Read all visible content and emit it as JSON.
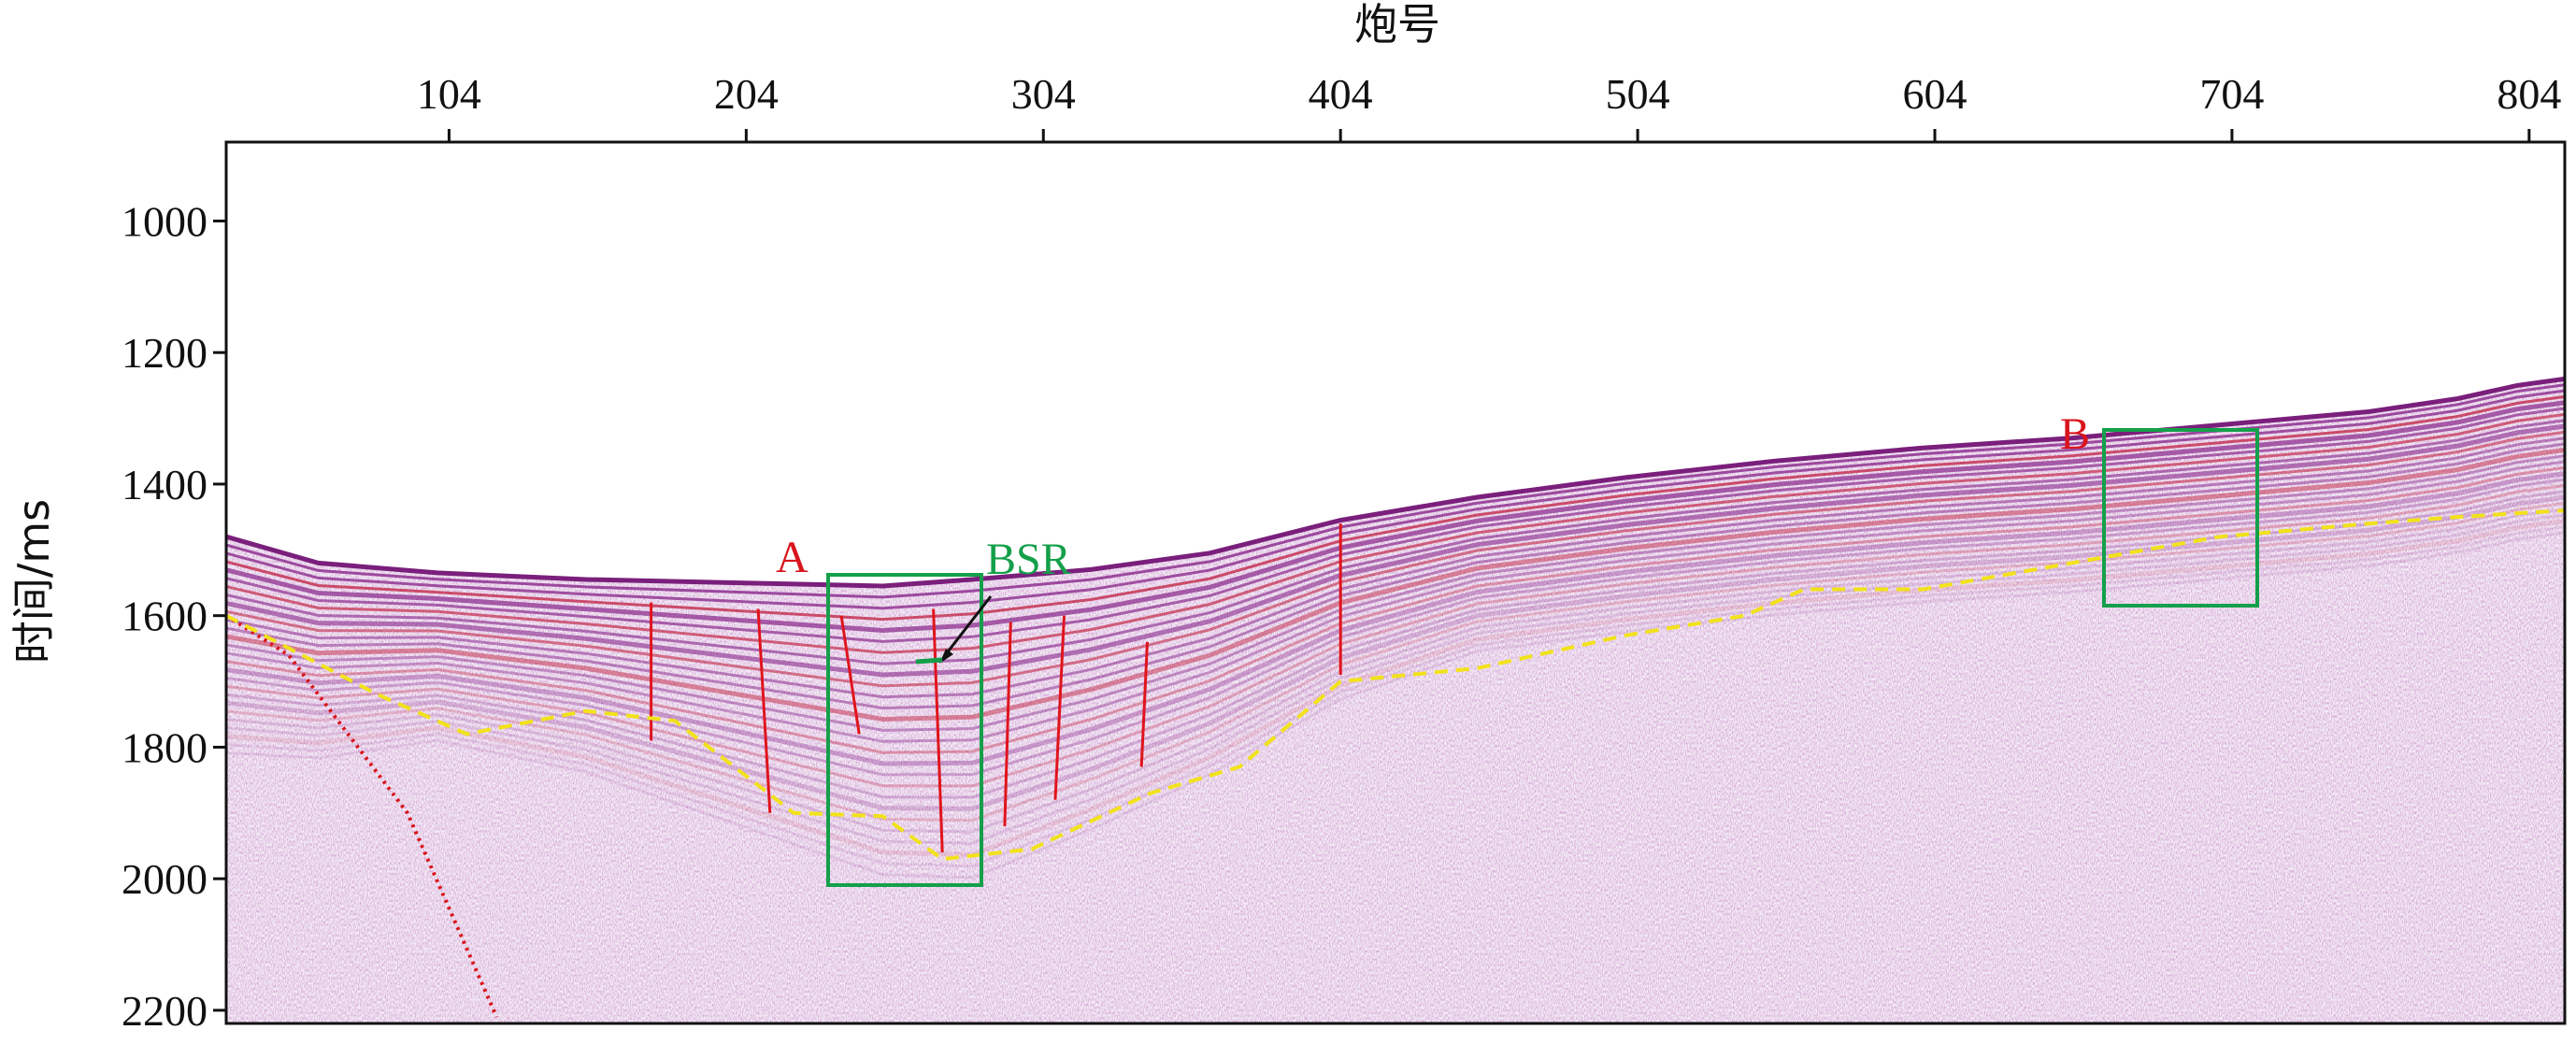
{
  "figure": {
    "x_axis_title": "炮号",
    "y_axis_title": "时间/ms",
    "x_ticks": [
      "104",
      "204",
      "304",
      "404",
      "504",
      "604",
      "704",
      "804"
    ],
    "y_ticks": [
      "1000",
      "1200",
      "1400",
      "1600",
      "1800",
      "2000",
      "2200"
    ]
  },
  "annotations": {
    "box_a_label": "A",
    "box_b_label": "B",
    "bsr_label": "BSR"
  },
  "colors": {
    "seismic_purple": "#8a2a8c",
    "seismic_red": "#c02040",
    "fault_red": "#e0141c",
    "bsr_yellow": "#f2e21a",
    "box_green": "#14a04a",
    "label_red": "#d8141c"
  },
  "axes": {
    "x_range_shot": [
      29,
      816
    ],
    "y_range_ms": [
      880,
      2220
    ]
  }
}
